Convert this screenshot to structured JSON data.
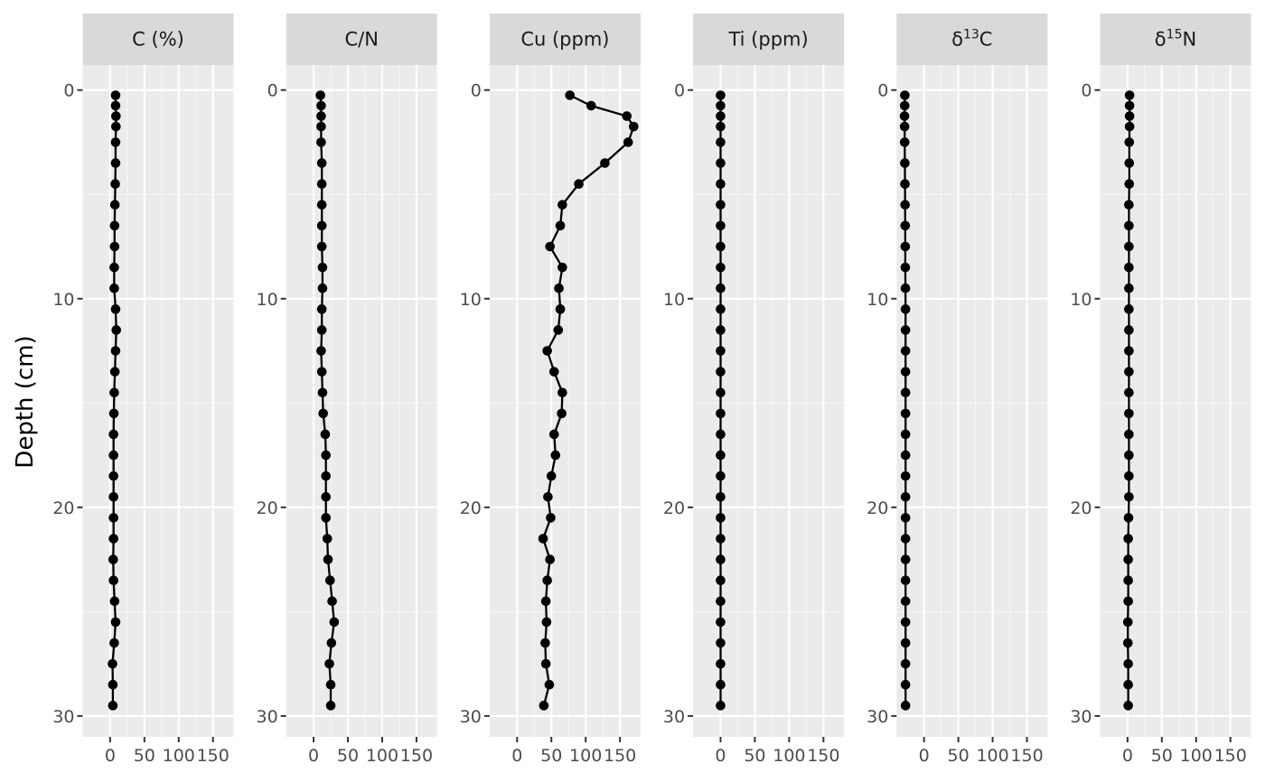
{
  "chart_data": {
    "type": "line",
    "ylabel": "Depth (cm)",
    "y_reversed": true,
    "ylim": [
      -1.2,
      31.0
    ],
    "y_ticks": [
      0,
      10,
      20,
      30
    ],
    "xlim": [
      -40,
      180
    ],
    "x_ticks": [
      0,
      50,
      100,
      150
    ],
    "x_tick_labels": [
      "0",
      "50",
      "100",
      "150"
    ],
    "grid": true,
    "depth": [
      0.25,
      0.75,
      1.25,
      1.75,
      2.5,
      3.5,
      4.5,
      5.5,
      6.5,
      7.5,
      8.5,
      9.5,
      10.5,
      11.5,
      12.5,
      13.5,
      14.5,
      15.5,
      16.5,
      17.5,
      18.5,
      19.5,
      20.5,
      21.5,
      22.5,
      23.5,
      24.5,
      25.5,
      26.5,
      27.5,
      28.5,
      29.5
    ],
    "panels": [
      {
        "title": "C (%)",
        "values": [
          8.0,
          8.0,
          8.5,
          8.5,
          8.0,
          8.0,
          7.5,
          7.0,
          6.5,
          6.5,
          6.0,
          6.0,
          8.0,
          9.0,
          8.0,
          7.0,
          6.0,
          5.5,
          5.0,
          5.0,
          5.0,
          5.0,
          5.0,
          5.0,
          4.5,
          5.0,
          6.5,
          8.0,
          6.0,
          3.5,
          4.0,
          4.0
        ]
      },
      {
        "title": "C/N",
        "values": [
          10,
          11,
          11,
          11,
          11,
          12,
          12,
          12,
          12,
          12,
          13,
          13,
          12,
          12,
          11,
          12,
          13,
          14,
          17,
          18,
          18,
          18,
          18,
          20,
          21,
          24,
          27,
          30,
          26,
          23,
          25,
          25
        ]
      },
      {
        "title": "Cu (ppm)",
        "values": [
          77,
          108,
          160,
          170,
          162,
          128,
          90,
          66,
          63,
          48,
          66,
          61,
          63,
          60,
          44,
          54,
          66,
          65,
          54,
          56,
          50,
          45,
          49,
          38,
          48,
          44,
          42,
          43,
          41,
          42,
          47,
          39
        ]
      },
      {
        "title": "Ti (ppm)",
        "values": [
          0,
          0,
          0,
          0,
          0,
          0,
          0,
          0,
          0,
          0,
          0,
          0,
          0,
          0,
          0,
          0,
          0,
          0,
          0,
          0,
          0,
          0,
          0,
          0,
          0,
          0,
          0,
          0,
          0,
          0,
          0,
          0
        ]
      },
      {
        "title": "δ13C",
        "title_base": "δ",
        "title_sup": "13",
        "title_rest": "C",
        "values": [
          -28.0,
          -28.2,
          -28.5,
          -28.3,
          -28.2,
          -28.0,
          -27.8,
          -27.6,
          -27.5,
          -27.4,
          -27.3,
          -27.1,
          -27.0,
          -27.0,
          -27.0,
          -27.0,
          -27.0,
          -27.0,
          -27.0,
          -27.0,
          -27.0,
          -27.0,
          -27.0,
          -27.0,
          -27.0,
          -27.0,
          -27.0,
          -27.0,
          -27.0,
          -27.0,
          -27.0,
          -27.0
        ]
      },
      {
        "title": "δ15N",
        "title_base": "δ",
        "title_sup": "15",
        "title_rest": "N",
        "values": [
          3.0,
          3.0,
          3.0,
          3.0,
          2.5,
          2.5,
          2.5,
          2.0,
          2.0,
          2.0,
          2.0,
          2.0,
          2.0,
          2.0,
          2.0,
          2.0,
          2.0,
          2.0,
          2.0,
          2.0,
          2.0,
          2.0,
          1.5,
          1.0,
          1.0,
          1.0,
          1.0,
          0.5,
          0.5,
          1.0,
          1.0,
          1.0
        ]
      }
    ]
  },
  "colors": {
    "panel_background": "#ebebeb",
    "strip_background": "#d9d9d9",
    "grid_major": "#ffffff",
    "grid_minor": "#f5f5f5",
    "line": "#000000",
    "tick": "#333333"
  }
}
